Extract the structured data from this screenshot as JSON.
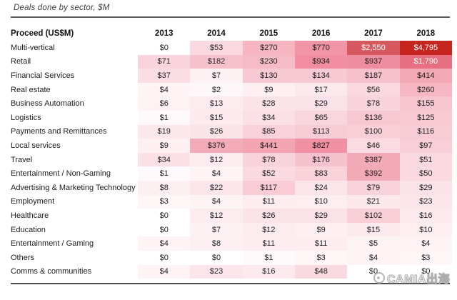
{
  "figure": {
    "title": "Deals done by sector, $M"
  },
  "watermark": {
    "text": "CAMIA出海"
  },
  "chart_data": {
    "type": "heatmap",
    "title": "Deals done by sector, $M",
    "row_header_label": "Proceed (US$M)",
    "columns": [
      "2013",
      "2014",
      "2015",
      "2016",
      "2017",
      "2018"
    ],
    "value_prefix": "$",
    "rows": [
      {
        "sector": "Multi-vertical",
        "values": [
          0,
          53,
          270,
          770,
          2550,
          4795
        ]
      },
      {
        "sector": "Retail",
        "values": [
          71,
          182,
          230,
          934,
          937,
          1790
        ]
      },
      {
        "sector": "Financial Services",
        "values": [
          37,
          7,
          130,
          134,
          187,
          414
        ]
      },
      {
        "sector": "Real estate",
        "values": [
          4,
          2,
          9,
          17,
          56,
          260
        ]
      },
      {
        "sector": "Business Automation",
        "values": [
          6,
          13,
          28,
          29,
          78,
          155
        ]
      },
      {
        "sector": "Logistics",
        "values": [
          1,
          15,
          34,
          65,
          136,
          125
        ]
      },
      {
        "sector": "Payments and Remittances",
        "values": [
          19,
          26,
          85,
          113,
          100,
          116
        ]
      },
      {
        "sector": "Local services",
        "values": [
          9,
          376,
          441,
          827,
          46,
          97
        ]
      },
      {
        "sector": "Travel",
        "values": [
          34,
          12,
          78,
          176,
          387,
          51
        ]
      },
      {
        "sector": "Entertainment / Non-Gaming",
        "values": [
          1,
          4,
          52,
          83,
          392,
          50
        ]
      },
      {
        "sector": "Advertising & Marketing Technology",
        "values": [
          8,
          22,
          117,
          24,
          79,
          29
        ]
      },
      {
        "sector": "Employment",
        "values": [
          3,
          4,
          11,
          10,
          21,
          23
        ]
      },
      {
        "sector": "Healthcare",
        "values": [
          0,
          12,
          26,
          29,
          102,
          16
        ]
      },
      {
        "sector": "Education",
        "values": [
          0,
          7,
          12,
          9,
          15,
          10
        ]
      },
      {
        "sector": "Entertainment / Gaming",
        "values": [
          4,
          8,
          11,
          11,
          5,
          4
        ]
      },
      {
        "sector": "Others",
        "values": [
          0,
          0,
          1,
          3,
          4,
          3
        ]
      },
      {
        "sector": "Comms & communities",
        "values": [
          4,
          23,
          16,
          48,
          0,
          0
        ]
      }
    ],
    "heatmap_scale": {
      "description": "cell shade ~ sqrt(value/max); white text above threshold",
      "scale": "sqrt",
      "max_value": 4795,
      "white_text_threshold": 1000,
      "dark_text_color": "#222222",
      "light_text_color": "#ffffff",
      "stops": [
        {
          "t": 0.0,
          "color": "#ffffff"
        },
        {
          "t": 0.1,
          "color": "#fadae1"
        },
        {
          "t": 0.2,
          "color": "#f6c0cb"
        },
        {
          "t": 0.3,
          "color": "#f3a6b4"
        },
        {
          "t": 0.42,
          "color": "#f090a3"
        },
        {
          "t": 0.55,
          "color": "#ed7d92"
        },
        {
          "t": 0.73,
          "color": "#d8585f"
        },
        {
          "t": 1.0,
          "color": "#c5251e"
        }
      ]
    }
  }
}
